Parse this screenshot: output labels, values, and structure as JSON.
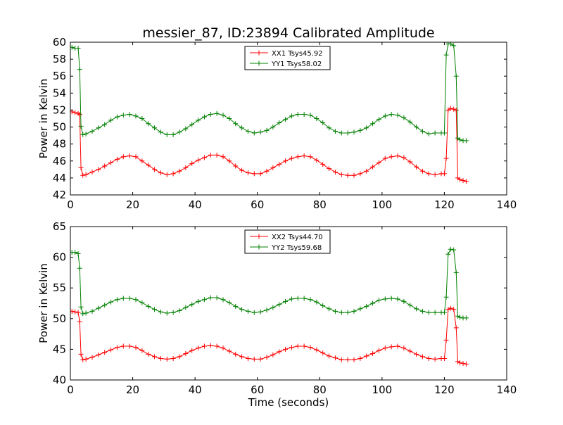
{
  "title": "messier_87, ID:23894 Calibrated Amplitude",
  "colors": {
    "xx": "#ff0000",
    "yy": "#008000"
  },
  "chart_data": [
    {
      "type": "line",
      "title": "messier_87, ID:23894 Calibrated Amplitude",
      "xlabel": "",
      "ylabel": "Power in Kelvin",
      "xlim": [
        0,
        140
      ],
      "ylim": [
        42,
        60
      ],
      "xticks": [
        0,
        20,
        40,
        60,
        80,
        100,
        120,
        140
      ],
      "yticks": [
        42,
        44,
        46,
        48,
        50,
        52,
        54,
        56,
        58,
        60
      ],
      "legend_position": "top-center",
      "series": [
        {
          "name": "XX1 Tsys45.92",
          "color": "#ff0000",
          "x": [
            0.5,
            1.5,
            2.5,
            3.0,
            3.4,
            4.0,
            5,
            7,
            9,
            11,
            13,
            15,
            17,
            19,
            21,
            23,
            25,
            27,
            29,
            31,
            33,
            35,
            37,
            39,
            41,
            43,
            45,
            47,
            49,
            51,
            53,
            55,
            57,
            59,
            61,
            63,
            65,
            67,
            69,
            71,
            73,
            75,
            77,
            79,
            81,
            83,
            85,
            87,
            89,
            91,
            93,
            95,
            97,
            99,
            101,
            103,
            105,
            107,
            109,
            111,
            113,
            115,
            117,
            119,
            120,
            120.6,
            121.2,
            122,
            123,
            123.8,
            124.3,
            125,
            126,
            127
          ],
          "y": [
            51.8,
            51.7,
            51.6,
            51.5,
            45.2,
            44.3,
            44.4,
            44.7,
            45.0,
            45.4,
            45.8,
            46.2,
            46.5,
            46.6,
            46.5,
            46.0,
            45.5,
            45.0,
            44.6,
            44.4,
            44.5,
            44.8,
            45.2,
            45.7,
            46.1,
            46.4,
            46.7,
            46.7,
            46.5,
            46.0,
            45.4,
            44.9,
            44.6,
            44.5,
            44.5,
            44.8,
            45.2,
            45.6,
            46.0,
            46.3,
            46.5,
            46.6,
            46.5,
            46.1,
            45.6,
            45.1,
            44.7,
            44.4,
            44.3,
            44.3,
            44.5,
            44.8,
            45.3,
            45.8,
            46.3,
            46.5,
            46.6,
            46.4,
            45.9,
            45.3,
            44.8,
            44.5,
            44.4,
            44.5,
            44.5,
            46.3,
            52.0,
            52.2,
            52.1,
            52.0,
            44.0,
            43.8,
            43.7,
            43.6
          ]
        },
        {
          "name": "YY1 Tsys58.02",
          "color": "#008000",
          "x": [
            0.5,
            1.5,
            2.5,
            3.0,
            3.4,
            4.0,
            5,
            7,
            9,
            11,
            13,
            15,
            17,
            19,
            21,
            23,
            25,
            27,
            29,
            31,
            33,
            35,
            37,
            39,
            41,
            43,
            45,
            47,
            49,
            51,
            53,
            55,
            57,
            59,
            61,
            63,
            65,
            67,
            69,
            71,
            73,
            75,
            77,
            79,
            81,
            83,
            85,
            87,
            89,
            91,
            93,
            95,
            97,
            99,
            101,
            103,
            105,
            107,
            109,
            111,
            113,
            115,
            117,
            119,
            120,
            120.6,
            121.2,
            122,
            123,
            123.8,
            124.3,
            125,
            126,
            127
          ],
          "y": [
            59.4,
            59.3,
            59.3,
            56.8,
            50.1,
            49.1,
            49.2,
            49.5,
            49.9,
            50.3,
            50.8,
            51.2,
            51.4,
            51.5,
            51.3,
            51.0,
            50.4,
            49.9,
            49.4,
            49.1,
            49.1,
            49.4,
            49.8,
            50.3,
            50.8,
            51.2,
            51.5,
            51.6,
            51.4,
            51.0,
            50.4,
            49.9,
            49.5,
            49.3,
            49.4,
            49.6,
            50.0,
            50.5,
            50.9,
            51.3,
            51.5,
            51.5,
            51.4,
            51.0,
            50.5,
            49.9,
            49.5,
            49.3,
            49.3,
            49.4,
            49.6,
            49.9,
            50.4,
            50.9,
            51.3,
            51.5,
            51.4,
            51.1,
            50.6,
            50.0,
            49.5,
            49.2,
            49.3,
            49.3,
            49.3,
            58.5,
            59.8,
            59.8,
            59.6,
            56.0,
            48.7,
            48.5,
            48.4,
            48.4
          ]
        }
      ]
    },
    {
      "type": "line",
      "title": "",
      "xlabel": "Time (seconds)",
      "ylabel": "Power in Kelvin",
      "xlim": [
        0,
        140
      ],
      "ylim": [
        40,
        65
      ],
      "xticks": [
        0,
        20,
        40,
        60,
        80,
        100,
        120,
        140
      ],
      "yticks": [
        40,
        45,
        50,
        55,
        60,
        65
      ],
      "legend_position": "top-center",
      "series": [
        {
          "name": "XX2 Tsys44.70",
          "color": "#ff0000",
          "x": [
            0.5,
            1.5,
            2.5,
            3.0,
            3.4,
            4.0,
            5,
            7,
            9,
            11,
            13,
            15,
            17,
            19,
            21,
            23,
            25,
            27,
            29,
            31,
            33,
            35,
            37,
            39,
            41,
            43,
            45,
            47,
            49,
            51,
            53,
            55,
            57,
            59,
            61,
            63,
            65,
            67,
            69,
            71,
            73,
            75,
            77,
            79,
            81,
            83,
            85,
            87,
            89,
            91,
            93,
            95,
            97,
            99,
            101,
            103,
            105,
            107,
            109,
            111,
            113,
            115,
            117,
            119,
            120,
            120.6,
            121.2,
            122,
            123,
            123.8,
            124.3,
            125,
            126,
            127
          ],
          "y": [
            51.2,
            51.1,
            51.0,
            49.5,
            44.2,
            43.3,
            43.4,
            43.7,
            44.1,
            44.5,
            44.9,
            45.3,
            45.5,
            45.5,
            45.3,
            44.8,
            44.2,
            43.8,
            43.5,
            43.4,
            43.5,
            43.8,
            44.3,
            44.8,
            45.2,
            45.5,
            45.6,
            45.5,
            45.2,
            44.7,
            44.2,
            43.8,
            43.5,
            43.4,
            43.4,
            43.7,
            44.1,
            44.6,
            45.0,
            45.3,
            45.5,
            45.5,
            45.3,
            44.9,
            44.4,
            43.9,
            43.6,
            43.3,
            43.3,
            43.3,
            43.5,
            43.9,
            44.3,
            44.8,
            45.2,
            45.4,
            45.5,
            45.2,
            44.7,
            44.2,
            43.8,
            43.5,
            43.4,
            43.5,
            43.5,
            46.5,
            51.5,
            51.7,
            51.5,
            48.5,
            43.0,
            42.8,
            42.7,
            42.6
          ]
        },
        {
          "name": "YY2 Tsys59.68",
          "color": "#008000",
          "x": [
            0.5,
            1.5,
            2.5,
            3.0,
            3.4,
            4.0,
            5,
            7,
            9,
            11,
            13,
            15,
            17,
            19,
            21,
            23,
            25,
            27,
            29,
            31,
            33,
            35,
            37,
            39,
            41,
            43,
            45,
            47,
            49,
            51,
            53,
            55,
            57,
            59,
            61,
            63,
            65,
            67,
            69,
            71,
            73,
            75,
            77,
            79,
            81,
            83,
            85,
            87,
            89,
            91,
            93,
            95,
            97,
            99,
            101,
            103,
            105,
            107,
            109,
            111,
            113,
            115,
            117,
            119,
            120,
            120.6,
            121.2,
            122,
            123,
            123.8,
            124.3,
            125,
            126,
            127
          ],
          "y": [
            60.8,
            60.8,
            60.6,
            58.2,
            51.9,
            50.8,
            50.9,
            51.2,
            51.7,
            52.2,
            52.7,
            53.1,
            53.3,
            53.3,
            53.1,
            52.6,
            52.0,
            51.5,
            51.1,
            50.9,
            51.0,
            51.3,
            51.8,
            52.3,
            52.8,
            53.1,
            53.4,
            53.4,
            53.1,
            52.6,
            52.0,
            51.5,
            51.2,
            51.0,
            51.1,
            51.4,
            51.8,
            52.3,
            52.8,
            53.2,
            53.3,
            53.3,
            53.1,
            52.7,
            52.1,
            51.6,
            51.2,
            51.0,
            51.0,
            51.2,
            51.6,
            52.0,
            52.5,
            53.0,
            53.2,
            53.3,
            53.2,
            52.8,
            52.2,
            51.6,
            51.2,
            51.0,
            51.0,
            51.0,
            51.0,
            53.5,
            60.5,
            61.3,
            61.2,
            57.5,
            50.4,
            50.2,
            50.1,
            50.1
          ]
        }
      ]
    }
  ]
}
